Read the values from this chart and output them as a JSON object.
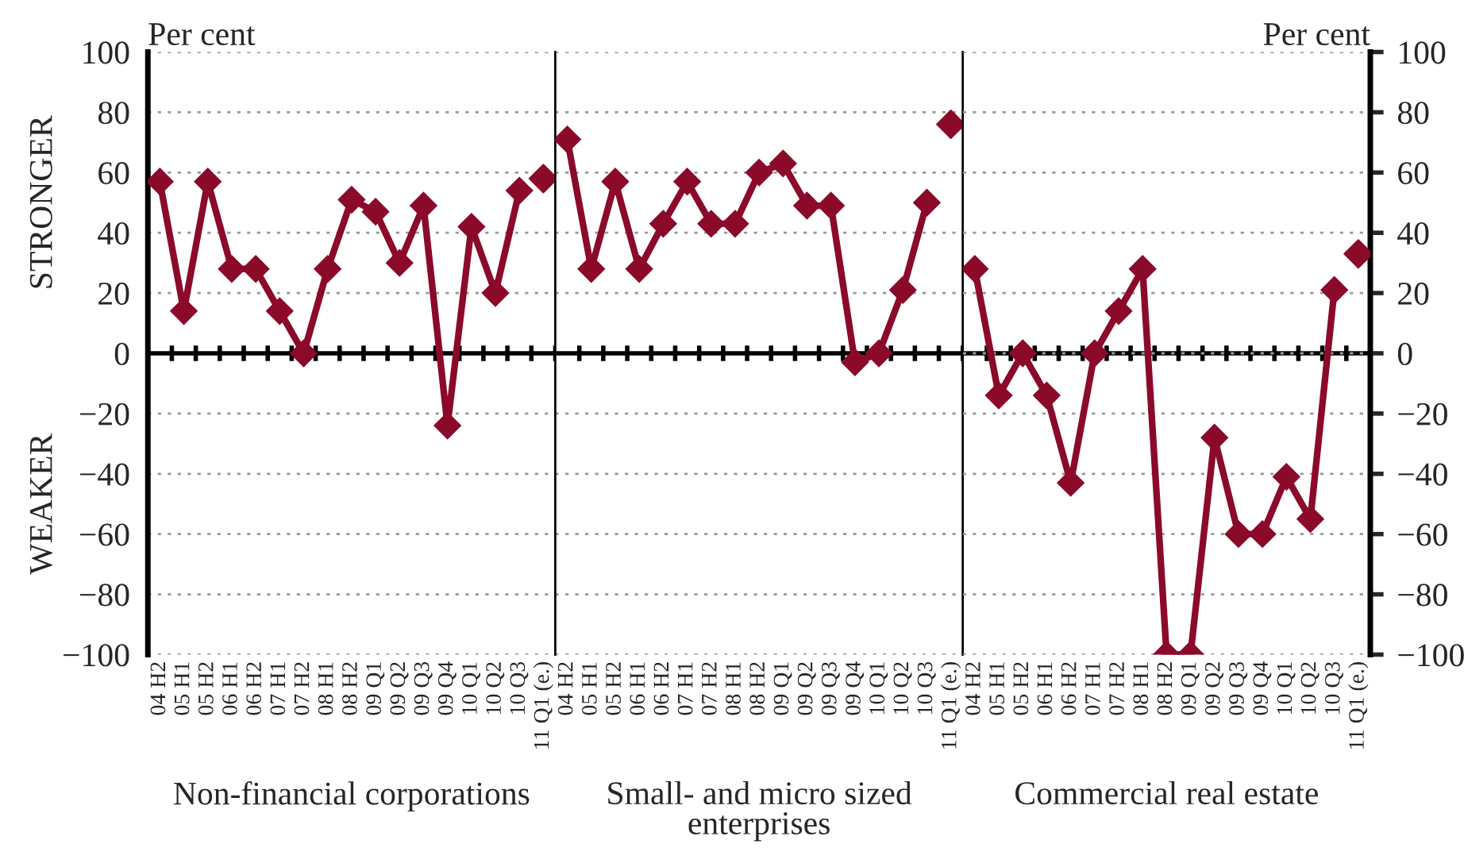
{
  "chart_data": [
    {
      "type": "line",
      "xlabel": "Non-financial corporations",
      "ylabel": "Per cent",
      "annotations": [
        "STRONGER",
        "WEAKER"
      ],
      "categories": [
        "04 H2",
        "05 H1",
        "05 H2",
        "06 H1",
        "06 H2",
        "07 H1",
        "07 H2",
        "08 H1",
        "08 H2",
        "09 Q1",
        "09 Q2",
        "09 Q3",
        "09 Q4",
        "10 Q1",
        "10 Q2",
        "10 Q3",
        "11 Q1 (e.)"
      ],
      "series": [
        {
          "color": "#8b0a2a",
          "values": [
            57,
            14,
            57,
            28,
            28,
            14,
            0,
            28,
            51,
            47,
            30,
            49,
            -24,
            42,
            20,
            54,
            null
          ]
        },
        {
          "type": "scatter",
          "color": "#8b0a2a",
          "values": [
            null,
            null,
            null,
            null,
            null,
            null,
            null,
            null,
            null,
            null,
            null,
            null,
            null,
            null,
            null,
            null,
            58
          ]
        }
      ],
      "ylim": [
        -100,
        100
      ],
      "yticks": [
        -100,
        -80,
        -60,
        -40,
        -20,
        0,
        20,
        40,
        60,
        80,
        100
      ],
      "grid": "y",
      "marker": "diamond",
      "line_style": "solid"
    },
    {
      "type": "line",
      "xlabel": "Small- and micro sized\nenterprises",
      "categories": [
        "04 H2",
        "05 H1",
        "05 H2",
        "06 H1",
        "06 H2",
        "07 H1",
        "07 H2",
        "08 H1",
        "08 H2",
        "09 Q1",
        "09 Q2",
        "09 Q3",
        "09 Q4",
        "10 Q1",
        "10 Q2",
        "10 Q3",
        "11 Q1 (e.)"
      ],
      "series": [
        {
          "color": "#8b0a2a",
          "values": [
            71,
            28,
            57,
            28,
            43,
            57,
            43,
            43,
            60,
            63,
            49,
            49,
            -3,
            0,
            21,
            50,
            null
          ]
        },
        {
          "type": "scatter",
          "color": "#8b0a2a",
          "values": [
            null,
            null,
            null,
            null,
            null,
            null,
            null,
            null,
            null,
            null,
            null,
            null,
            null,
            null,
            null,
            null,
            76
          ]
        }
      ],
      "ylim": [
        -100,
        100
      ],
      "tick_labels": "x",
      "grid": "y",
      "marker": "diamond",
      "line_style": "solid"
    },
    {
      "type": "line",
      "xlabel": "Commercial real estate",
      "y2label": "Per cent",
      "categories": [
        "04 H2",
        "05 H1",
        "05 H2",
        "06 H1",
        "06 H2",
        "07 H1",
        "07 H2",
        "08 H1",
        "08 H2",
        "09 Q1",
        "09 Q2",
        "09 Q3",
        "09 Q4",
        "10 Q1",
        "10 Q2",
        "10 Q3",
        "11 Q1 (e.)"
      ],
      "series": [
        {
          "axis": "y2",
          "color": "#8b0a2a",
          "values": [
            28,
            -14,
            0,
            -14,
            -43,
            0,
            14,
            28,
            -100,
            -100,
            -28,
            -60,
            -60,
            -41,
            -55,
            21,
            null
          ]
        },
        {
          "type": "scatter",
          "axis": "y2",
          "color": "#8b0a2a",
          "values": [
            null,
            null,
            null,
            null,
            null,
            null,
            null,
            null,
            null,
            null,
            null,
            null,
            null,
            null,
            null,
            null,
            33
          ]
        }
      ],
      "y2lim": [
        -100,
        100
      ],
      "y2ticks": [
        -100,
        -80,
        -60,
        -40,
        -20,
        0,
        20,
        40,
        60,
        80,
        100
      ],
      "grid": "y",
      "marker": "diamond",
      "line_style": "solid"
    }
  ]
}
